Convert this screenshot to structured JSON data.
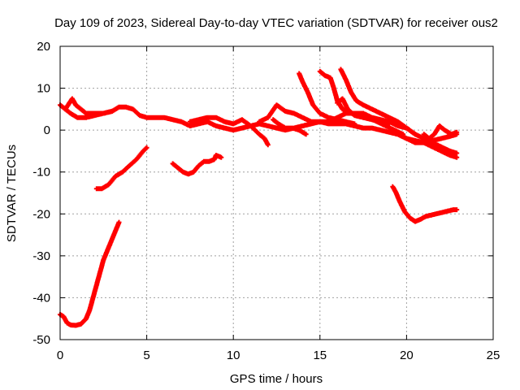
{
  "chart_data": {
    "type": "scatter",
    "title": "Day 109 of 2023, Sidereal Day-to-day VTEC variation (SDTVAR) for receiver ous2",
    "xlabel": "GPS time / hours",
    "ylabel": "SDTVAR / TECUs",
    "xlim": [
      0,
      25
    ],
    "ylim": [
      -50,
      20
    ],
    "xticks": [
      0,
      5,
      10,
      15,
      20,
      25
    ],
    "yticks": [
      -50,
      -40,
      -30,
      -20,
      -10,
      0,
      10,
      20
    ],
    "grid": true,
    "marker": "+",
    "series_color": "#ff0000",
    "series": [
      {
        "name": "arc-1",
        "points": [
          [
            0,
            -44
          ],
          [
            0.2,
            -44.5
          ],
          [
            0.4,
            -46
          ],
          [
            0.6,
            -46.5
          ],
          [
            0.9,
            -46.6
          ],
          [
            1.2,
            -46.3
          ],
          [
            1.5,
            -45
          ],
          [
            1.7,
            -43
          ],
          [
            1.9,
            -40
          ],
          [
            2.1,
            -37
          ],
          [
            2.3,
            -34
          ],
          [
            2.5,
            -31
          ],
          [
            2.7,
            -29
          ],
          [
            2.9,
            -27
          ],
          [
            3.1,
            -25
          ],
          [
            3.3,
            -23
          ],
          [
            3.4,
            -22
          ]
        ]
      },
      {
        "name": "arc-2",
        "points": [
          [
            2.1,
            -14
          ],
          [
            2.4,
            -14
          ],
          [
            2.8,
            -13
          ],
          [
            3.2,
            -11
          ],
          [
            3.6,
            -10
          ],
          [
            4.0,
            -8.5
          ],
          [
            4.4,
            -7
          ],
          [
            4.8,
            -5
          ],
          [
            5.0,
            -4.2
          ]
        ]
      },
      {
        "name": "arc-3",
        "points": [
          [
            6.5,
            -8
          ],
          [
            6.8,
            -9
          ],
          [
            7.1,
            -10
          ],
          [
            7.4,
            -10.5
          ],
          [
            7.7,
            -10
          ],
          [
            8.0,
            -8.5
          ],
          [
            8.3,
            -7.5
          ],
          [
            8.6,
            -7.5
          ],
          [
            8.9,
            -7
          ],
          [
            9.0,
            -6
          ],
          [
            9.3,
            -6.5
          ]
        ]
      },
      {
        "name": "arc-4",
        "points": [
          [
            19.2,
            -13.5
          ],
          [
            19.4,
            -15
          ],
          [
            19.6,
            -17
          ],
          [
            19.9,
            -19.5
          ],
          [
            20.2,
            -21
          ],
          [
            20.5,
            -21.8
          ],
          [
            20.8,
            -21.3
          ],
          [
            21.1,
            -20.6
          ],
          [
            21.5,
            -20.2
          ],
          [
            21.9,
            -19.8
          ],
          [
            22.3,
            -19.4
          ],
          [
            22.7,
            -19
          ],
          [
            22.9,
            -19
          ]
        ]
      },
      {
        "name": "arc-5",
        "points": [
          [
            0,
            6
          ],
          [
            0.3,
            5
          ],
          [
            0.6,
            4
          ],
          [
            1.0,
            3
          ],
          [
            1.5,
            3
          ],
          [
            2.0,
            3.5
          ],
          [
            2.5,
            4
          ],
          [
            3.0,
            4.5
          ],
          [
            3.4,
            5.5
          ],
          [
            3.8,
            5.5
          ],
          [
            4.2,
            5
          ],
          [
            4.6,
            3.5
          ],
          [
            5.0,
            3
          ],
          [
            5.5,
            3
          ],
          [
            6.0,
            3
          ],
          [
            6.5,
            2.5
          ],
          [
            7.0,
            2
          ],
          [
            7.5,
            1
          ],
          [
            8.0,
            1.5
          ],
          [
            8.5,
            2
          ],
          [
            9.0,
            1
          ],
          [
            9.5,
            0.5
          ],
          [
            10.0,
            0
          ],
          [
            10.5,
            0.5
          ],
          [
            11.0,
            1
          ],
          [
            11.5,
            1.5
          ],
          [
            12.0,
            1
          ],
          [
            12.5,
            0.5
          ],
          [
            13.0,
            0
          ],
          [
            13.5,
            0.5
          ],
          [
            14.0,
            1
          ],
          [
            14.5,
            1.5
          ],
          [
            15.0,
            2
          ],
          [
            15.5,
            1.5
          ],
          [
            16.0,
            1.5
          ],
          [
            16.5,
            1.5
          ],
          [
            17.0,
            1
          ],
          [
            17.5,
            0.5
          ],
          [
            18.0,
            0.5
          ],
          [
            18.5,
            0
          ],
          [
            19.0,
            -0.5
          ],
          [
            19.5,
            -1
          ],
          [
            20.0,
            -2
          ],
          [
            20.5,
            -3
          ],
          [
            21.0,
            -3
          ],
          [
            21.5,
            -2.5
          ],
          [
            22.0,
            -2
          ],
          [
            22.5,
            -1.5
          ],
          [
            22.9,
            -1
          ]
        ]
      },
      {
        "name": "arc-6",
        "points": [
          [
            0.3,
            5
          ],
          [
            0.7,
            7.5
          ],
          [
            0.9,
            6
          ],
          [
            1.2,
            5
          ],
          [
            1.5,
            4
          ],
          [
            2.0,
            4
          ],
          [
            2.5,
            4
          ],
          [
            3.0,
            4.5
          ]
        ]
      },
      {
        "name": "arc-7",
        "points": [
          [
            7.5,
            2
          ],
          [
            8.0,
            2.5
          ],
          [
            8.5,
            3
          ],
          [
            9.0,
            3
          ],
          [
            9.5,
            2
          ],
          [
            10.0,
            1.5
          ],
          [
            10.5,
            2.5
          ],
          [
            11.0,
            1
          ],
          [
            11.5,
            -1
          ],
          [
            11.8,
            -2
          ],
          [
            12.0,
            -3.5
          ]
        ]
      },
      {
        "name": "arc-8",
        "points": [
          [
            11.5,
            2
          ],
          [
            12.0,
            3
          ],
          [
            12.5,
            6
          ],
          [
            13.0,
            4.5
          ],
          [
            13.5,
            4
          ],
          [
            14.0,
            3
          ],
          [
            14.5,
            2
          ],
          [
            15.0,
            2
          ],
          [
            15.5,
            2
          ],
          [
            16.0,
            3
          ],
          [
            16.5,
            4
          ],
          [
            17.0,
            4
          ],
          [
            17.5,
            4
          ],
          [
            18.0,
            3
          ],
          [
            18.5,
            2.5
          ],
          [
            19.0,
            2
          ],
          [
            19.5,
            1
          ],
          [
            20.0,
            0.5
          ],
          [
            20.5,
            -1
          ]
        ]
      },
      {
        "name": "arc-9",
        "points": [
          [
            12.3,
            2.5
          ],
          [
            12.6,
            1.5
          ],
          [
            13.0,
            0.5
          ],
          [
            13.4,
            0.5
          ],
          [
            13.8,
            0
          ],
          [
            14.2,
            -1
          ]
        ]
      },
      {
        "name": "arc-10",
        "points": [
          [
            13.8,
            13.5
          ],
          [
            14.0,
            11.5
          ],
          [
            14.3,
            9
          ],
          [
            14.6,
            6
          ],
          [
            15.0,
            4
          ],
          [
            15.5,
            3
          ],
          [
            16.0,
            2.5
          ],
          [
            16.5,
            2
          ],
          [
            17.0,
            1.5
          ]
        ]
      },
      {
        "name": "arc-11",
        "points": [
          [
            15.0,
            14
          ],
          [
            15.3,
            13
          ],
          [
            15.6,
            12.5
          ],
          [
            15.8,
            10
          ],
          [
            16.0,
            7
          ],
          [
            16.3,
            5
          ],
          [
            16.8,
            4
          ],
          [
            17.3,
            3.5
          ],
          [
            17.8,
            3
          ],
          [
            18.3,
            2
          ],
          [
            18.8,
            1
          ],
          [
            19.3,
            0
          ],
          [
            19.8,
            -1
          ]
        ]
      },
      {
        "name": "arc-12",
        "points": [
          [
            16.2,
            14.5
          ],
          [
            16.5,
            12
          ],
          [
            16.8,
            9
          ],
          [
            17.1,
            7
          ],
          [
            17.5,
            6
          ],
          [
            18.0,
            5
          ],
          [
            18.5,
            4
          ],
          [
            19.0,
            3
          ],
          [
            19.5,
            2
          ],
          [
            20.0,
            0.5
          ],
          [
            20.5,
            -1
          ],
          [
            21.0,
            -2
          ],
          [
            21.5,
            -3
          ],
          [
            22.0,
            -4
          ],
          [
            22.5,
            -5
          ],
          [
            22.9,
            -5.5
          ]
        ]
      },
      {
        "name": "arc-13",
        "points": [
          [
            16.0,
            6.5
          ],
          [
            16.3,
            7.5
          ],
          [
            16.6,
            5
          ],
          [
            17.0,
            3.5
          ],
          [
            17.5,
            3
          ],
          [
            18.0,
            2.5
          ],
          [
            18.5,
            2
          ],
          [
            19.0,
            1.5
          ]
        ]
      },
      {
        "name": "arc-14",
        "points": [
          [
            19.5,
            -1
          ],
          [
            20.0,
            -2
          ],
          [
            20.5,
            -2.5
          ],
          [
            21.0,
            -3
          ],
          [
            21.5,
            -4
          ],
          [
            22.0,
            -5
          ],
          [
            22.5,
            -6
          ],
          [
            22.9,
            -6.5
          ]
        ]
      },
      {
        "name": "arc-15",
        "points": [
          [
            21.0,
            -1
          ],
          [
            21.3,
            -2
          ],
          [
            21.6,
            -1
          ],
          [
            21.9,
            1
          ],
          [
            22.2,
            0
          ],
          [
            22.6,
            -1
          ],
          [
            22.9,
            -0.5
          ]
        ]
      }
    ]
  }
}
